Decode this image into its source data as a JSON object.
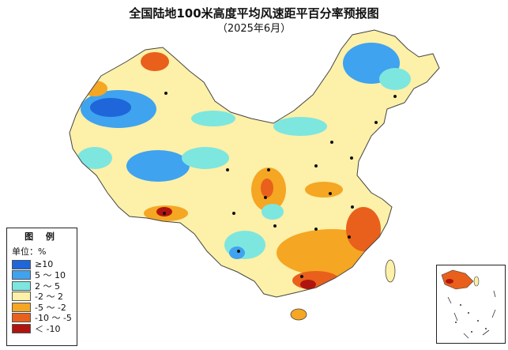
{
  "title": "全国陆地100米高度平均风速距平百分率预报图",
  "subtitle": "（2025年6月）",
  "legend": {
    "heading": "图 例",
    "unit": "单位：%",
    "items": [
      {
        "label": "≥10",
        "color": "#1e66d9"
      },
      {
        "label": "5 ～ 10",
        "color": "#3fa3ef"
      },
      {
        "label": "2 ～ 5",
        "color": "#7de6df"
      },
      {
        "label": "-2 ～ 2",
        "color": "#fdf0a8"
      },
      {
        "label": "-5 ～ -2",
        "color": "#f5a623"
      },
      {
        "label": "-10 ～ -5",
        "color": "#e8601c"
      },
      {
        "label": "＜ -10",
        "color": "#b0140f"
      }
    ]
  },
  "colors": {
    "border": "#444444",
    "city_dot": "#111111",
    "sea": "#ffffff"
  }
}
